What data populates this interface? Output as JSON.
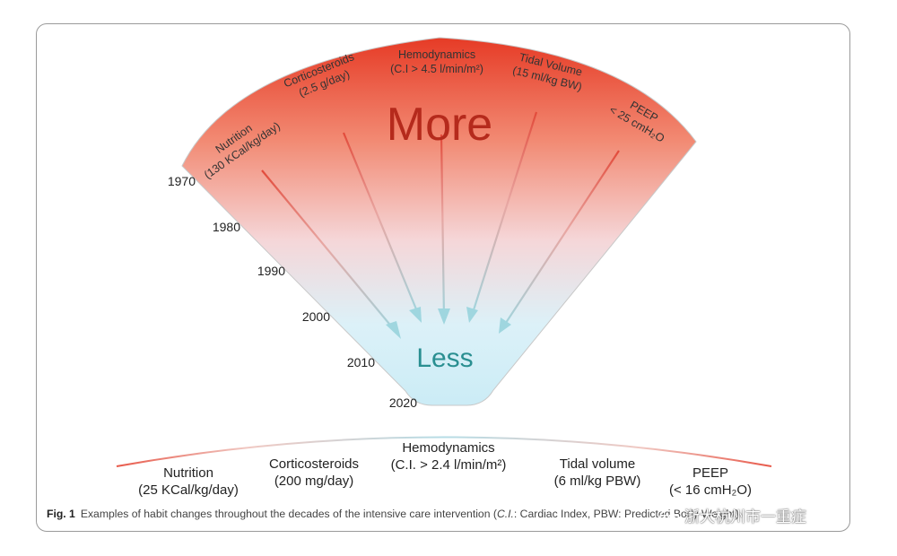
{
  "fan": {
    "more_label": "More",
    "less_label": "Less",
    "years": [
      "1970",
      "1980",
      "1990",
      "2000",
      "2010",
      "2020"
    ],
    "top_items": [
      {
        "name": "Nutrition",
        "value": "(130 KCal/kg/day)"
      },
      {
        "name": "Corticosteroids",
        "value": "(2.5 g/day)"
      },
      {
        "name": "Hemodynamics",
        "value": "(C.I > 4.5 l/min/m²)"
      },
      {
        "name": "Tidal Volume",
        "value": "(15 ml/kg BW)"
      },
      {
        "name": "PEEP",
        "value": "< 25 cmH₂O"
      }
    ],
    "colors": {
      "top": "#e8412b",
      "bottom": "#d4f0f8",
      "more_text": "#b52a1c",
      "less_text": "#2a8f91",
      "arrow": "#a8d8df"
    }
  },
  "bottom_items": [
    {
      "name": "Nutrition",
      "value": "(25 KCal/kg/day)"
    },
    {
      "name": "Corticosteroids",
      "value": "(200 mg/day)"
    },
    {
      "name": "Hemodynamics",
      "value": "(C.I. > 2.4 l/min/m²)"
    },
    {
      "name": "Tidal volume",
      "value": "(6 ml/kg PBW)"
    },
    {
      "name": "PEEP",
      "value": "(< 16 cmH₂O)"
    }
  ],
  "caption": {
    "label": "Fig. 1",
    "text_before": "Examples of habit changes throughout the decades of the intensive care intervention (",
    "italic": "C.I.",
    "text_after": ": Cardiac Index, PBW: Predicted Body Weight)"
  },
  "watermark": {
    "text": "浙大杭州市一重症"
  }
}
